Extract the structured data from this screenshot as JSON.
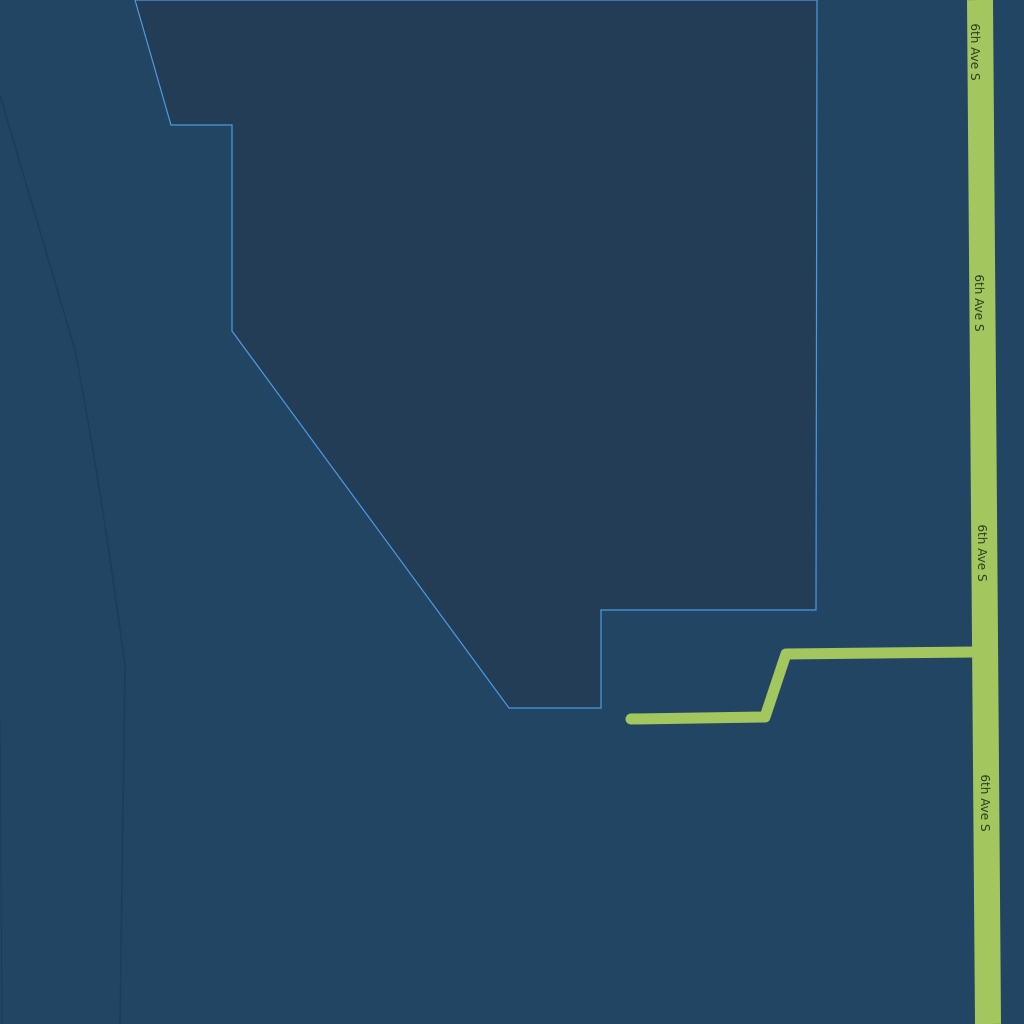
{
  "map": {
    "colors": {
      "background": "#224564",
      "parcel_fill": "#233d56",
      "parcel_outline": "#4a9be0",
      "road": "#a3c65e",
      "road_label": "#2e3f22",
      "faint_line": "#1e3c58"
    },
    "roads": [
      {
        "name": "6th Ave S",
        "labels": [
          "6th Ave S",
          "6th Ave S",
          "6th Ave S",
          "6th Ave S"
        ]
      },
      {
        "name": "",
        "labels": []
      }
    ]
  }
}
